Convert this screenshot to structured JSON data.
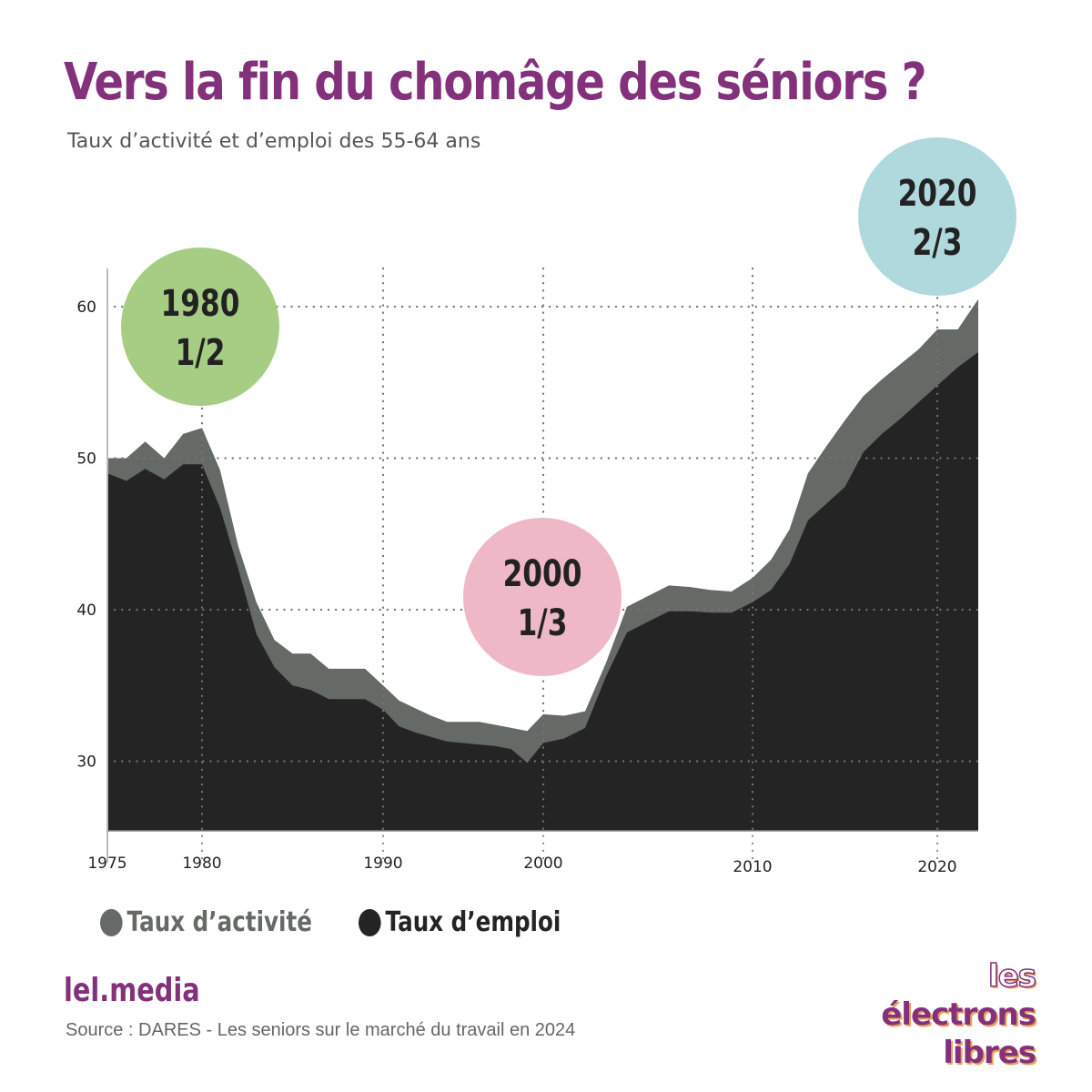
{
  "header": {
    "title": "Vers la fin du chomâge des séniors ?",
    "subtitle": "Taux d’activité et d’emploi des 55-64 ans"
  },
  "colors": {
    "title": "#84317c",
    "activite": "#656a66",
    "emploi": "#242424",
    "bubble_1980": "#a6cd83",
    "bubble_2000": "#efb8c6",
    "bubble_2020": "#b0d9de"
  },
  "chart_data": {
    "type": "area",
    "title": "Vers la fin du chomâge des séniors ?",
    "subtitle": "Taux d’activité et d’emploi des 55-64 ans",
    "xlabel": "",
    "ylabel": "",
    "x_ticks": [
      1975,
      1980,
      1990,
      2000,
      2010,
      2020
    ],
    "y_ticks": [
      30,
      40,
      50,
      60
    ],
    "ylim": [
      25.4,
      62.5
    ],
    "xlim": [
      1975,
      2022
    ],
    "grid": "dotted",
    "legend_position": "bottom-left",
    "x": [
      1975,
      1976,
      1977,
      1978,
      1979,
      1980,
      1981,
      1982,
      1983,
      1984,
      1985,
      1986,
      1987,
      1988,
      1989,
      1990,
      1991,
      1992,
      1993,
      1994,
      1995,
      1996,
      1997,
      1998,
      1999,
      2000,
      2001,
      2002,
      2003,
      2004,
      2005,
      2006,
      2007,
      2008,
      2009,
      2010,
      2011,
      2012,
      2013,
      2014,
      2015,
      2016,
      2017,
      2018,
      2019,
      2020,
      2021,
      2022
    ],
    "series": [
      {
        "name": "Taux d’activité",
        "values": [
          50.0,
          50.0,
          51.1,
          50.0,
          51.6,
          52.0,
          49.2,
          44.2,
          40.5,
          38.0,
          37.1,
          37.1,
          36.1,
          36.1,
          36.1,
          35.0,
          34.0,
          33.5,
          33.0,
          32.6,
          32.6,
          32.6,
          32.4,
          32.2,
          32.0,
          33.1,
          33.0,
          33.3,
          36.5,
          40.2,
          40.9,
          41.6,
          41.5,
          41.3,
          41.2,
          42.1,
          43.3,
          45.3,
          49.0,
          50.8,
          52.5,
          54.1,
          55.2,
          56.2,
          57.2,
          58.5,
          58.5,
          60.5
        ]
      },
      {
        "name": "Taux d’emploi",
        "values": [
          49.0,
          48.5,
          49.3,
          48.6,
          49.6,
          49.6,
          46.7,
          42.7,
          38.4,
          36.2,
          35.0,
          34.7,
          34.1,
          34.1,
          34.1,
          33.4,
          32.3,
          31.9,
          31.6,
          31.3,
          31.2,
          31.1,
          31.0,
          30.8,
          29.9,
          31.2,
          31.5,
          32.2,
          35.6,
          38.5,
          39.2,
          39.9,
          39.9,
          39.8,
          39.8,
          40.5,
          41.3,
          43.0,
          45.9,
          47.0,
          48.1,
          50.4,
          51.6,
          52.6,
          53.7,
          54.8,
          56.0,
          57.0
        ]
      }
    ],
    "annotations": [
      {
        "year": "1980",
        "fraction": "1/2"
      },
      {
        "year": "2000",
        "fraction": "1/3"
      },
      {
        "year": "2020",
        "fraction": "2/3"
      }
    ]
  },
  "legend": {
    "activite": "Taux d’activité",
    "emploi": "Taux d’emploi"
  },
  "footer": {
    "brand": "lel.media",
    "source": "Source : DARES - Les seniors sur le marché du travail en 2024",
    "logo_line1_a": "les",
    "logo_line1_b": "électrons",
    "logo_line2": "libres"
  }
}
